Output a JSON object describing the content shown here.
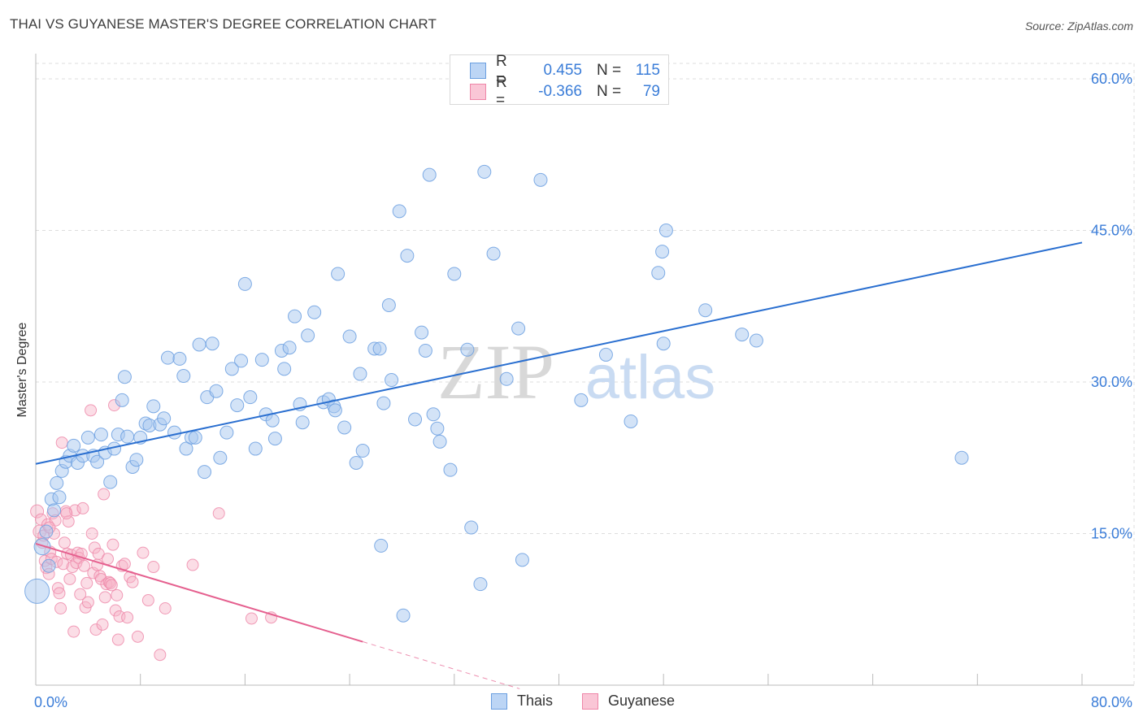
{
  "header": {
    "title": "THAI VS GUYANESE MASTER'S DEGREE CORRELATION CHART",
    "source": "Source: ZipAtlas.com"
  },
  "legend": {
    "series": [
      {
        "name": "Thais",
        "r_label": "R =",
        "r_value": "0.455",
        "n_label": "N =",
        "n_value": "115"
      },
      {
        "name": "Guyanese",
        "r_label": "R =",
        "r_value": "-0.366",
        "n_label": "N =",
        "n_value": "79"
      }
    ]
  },
  "watermark": {
    "zip": "ZIP",
    "atlas": "atlas"
  },
  "colors": {
    "thais_fill": "#a8c8f0",
    "thais_stroke": "#6b9fe0",
    "thais_line": "#2a6fd0",
    "guyanese_fill": "#f7b3c8",
    "guyanese_stroke": "#ee86a8",
    "guyanese_line": "#e5608f",
    "axis_text": "#3b7dd8",
    "grid": "#dddddd"
  },
  "chart_data": {
    "type": "scatter",
    "title": "THAI VS GUYANESE MASTER'S DEGREE CORRELATION CHART",
    "xlabel": "",
    "ylabel": "Master's Degree",
    "xlim": [
      0,
      80
    ],
    "ylim": [
      0,
      60
    ],
    "x_tick_labels": [
      "0.0%",
      "80.0%"
    ],
    "y_ticks": [
      15,
      30,
      45,
      60
    ],
    "y_tick_labels": [
      "15.0%",
      "30.0%",
      "45.0%",
      "60.0%"
    ],
    "grid": true,
    "legend_position": "top-center",
    "series": [
      {
        "name": "Thais",
        "trend": {
          "x0": 0,
          "y0": 21.9,
          "x1": 80,
          "y1": 43.8
        },
        "points": [
          [
            0.1,
            9.3,
            14
          ],
          [
            0.5,
            13.7,
            9
          ],
          [
            0.8,
            15.2,
            7
          ],
          [
            1.0,
            11.8,
            7
          ],
          [
            1.2,
            18.4,
            7
          ],
          [
            1.4,
            17.3,
            7
          ],
          [
            1.6,
            20.0,
            7
          ],
          [
            1.8,
            18.6,
            7
          ],
          [
            2.0,
            21.2,
            7
          ],
          [
            2.3,
            22.1,
            7
          ],
          [
            2.6,
            22.7,
            7
          ],
          [
            2.9,
            23.7,
            7
          ],
          [
            3.2,
            22.0,
            7
          ],
          [
            3.6,
            22.7,
            7
          ],
          [
            4.0,
            24.5,
            7
          ],
          [
            4.4,
            22.7,
            7
          ],
          [
            4.7,
            22.1,
            7
          ],
          [
            5.0,
            24.8,
            7
          ],
          [
            5.3,
            23.0,
            7
          ],
          [
            5.7,
            20.1,
            7
          ],
          [
            6.0,
            23.4,
            7
          ],
          [
            6.3,
            24.8,
            7
          ],
          [
            6.6,
            28.2,
            7
          ],
          [
            6.8,
            30.5,
            7
          ],
          [
            7.0,
            24.6,
            7
          ],
          [
            7.4,
            21.6,
            7
          ],
          [
            7.7,
            22.3,
            7
          ],
          [
            8.0,
            24.5,
            7
          ],
          [
            8.4,
            25.9,
            7
          ],
          [
            8.7,
            25.7,
            7
          ],
          [
            9.0,
            27.6,
            7
          ],
          [
            9.5,
            25.8,
            7
          ],
          [
            9.8,
            26.4,
            7
          ],
          [
            10.1,
            32.4,
            7
          ],
          [
            10.6,
            25.0,
            7
          ],
          [
            11.0,
            32.3,
            7
          ],
          [
            11.3,
            30.6,
            7
          ],
          [
            11.5,
            23.4,
            7
          ],
          [
            11.9,
            24.5,
            7
          ],
          [
            12.2,
            24.5,
            7
          ],
          [
            12.5,
            33.7,
            7
          ],
          [
            12.9,
            21.1,
            7
          ],
          [
            13.1,
            28.5,
            7
          ],
          [
            13.5,
            33.8,
            7
          ],
          [
            13.8,
            29.1,
            7
          ],
          [
            14.1,
            22.5,
            7
          ],
          [
            14.6,
            25.0,
            7
          ],
          [
            15.0,
            31.3,
            7
          ],
          [
            15.4,
            27.7,
            7
          ],
          [
            15.7,
            32.1,
            7
          ],
          [
            16.0,
            39.7,
            7
          ],
          [
            16.4,
            28.5,
            7
          ],
          [
            16.8,
            23.4,
            7
          ],
          [
            17.3,
            32.2,
            7
          ],
          [
            17.6,
            26.8,
            7
          ],
          [
            18.1,
            26.2,
            7
          ],
          [
            18.3,
            24.4,
            7
          ],
          [
            18.8,
            33.1,
            7
          ],
          [
            19.0,
            31.3,
            7
          ],
          [
            19.4,
            33.4,
            7
          ],
          [
            19.8,
            36.5,
            7
          ],
          [
            20.2,
            27.8,
            7
          ],
          [
            20.4,
            26.0,
            7
          ],
          [
            20.8,
            34.6,
            7
          ],
          [
            21.3,
            36.9,
            7
          ],
          [
            22.0,
            28.0,
            7
          ],
          [
            22.4,
            28.3,
            7
          ],
          [
            22.8,
            27.6,
            7
          ],
          [
            23.1,
            40.7,
            7
          ],
          [
            23.6,
            25.5,
            7
          ],
          [
            24.0,
            34.5,
            7
          ],
          [
            24.5,
            22.0,
            7
          ],
          [
            24.8,
            30.8,
            7
          ],
          [
            25.0,
            23.2,
            7
          ],
          [
            25.9,
            33.3,
            7
          ],
          [
            26.3,
            33.3,
            7
          ],
          [
            26.4,
            13.8,
            7
          ],
          [
            27.0,
            37.6,
            7
          ],
          [
            27.2,
            30.2,
            7
          ],
          [
            27.8,
            46.9,
            7
          ],
          [
            28.1,
            6.9,
            7
          ],
          [
            28.4,
            42.5,
            7
          ],
          [
            29.0,
            26.3,
            7
          ],
          [
            29.5,
            34.9,
            7
          ],
          [
            29.8,
            33.1,
            7
          ],
          [
            30.1,
            50.5,
            7
          ],
          [
            30.4,
            26.8,
            7
          ],
          [
            30.7,
            25.4,
            7
          ],
          [
            30.9,
            24.1,
            7
          ],
          [
            31.7,
            21.3,
            7
          ],
          [
            32.0,
            40.7,
            7
          ],
          [
            33.0,
            33.2,
            7
          ],
          [
            33.3,
            15.6,
            7
          ],
          [
            34.0,
            10.0,
            7
          ],
          [
            34.3,
            50.8,
            7
          ],
          [
            35.0,
            42.7,
            7
          ],
          [
            36.0,
            30.3,
            7
          ],
          [
            36.9,
            35.3,
            7
          ],
          [
            37.2,
            12.4,
            7
          ],
          [
            38.6,
            50.0,
            7
          ],
          [
            41.7,
            28.2,
            7
          ],
          [
            43.6,
            32.7,
            7
          ],
          [
            45.5,
            26.1,
            7
          ],
          [
            47.6,
            40.8,
            7
          ],
          [
            47.9,
            42.9,
            7
          ],
          [
            48.0,
            33.8,
            7
          ],
          [
            48.2,
            45.0,
            7
          ],
          [
            51.2,
            37.1,
            7
          ],
          [
            54.0,
            34.7,
            7
          ],
          [
            55.1,
            34.1,
            7
          ],
          [
            70.8,
            22.5,
            7
          ],
          [
            26.6,
            27.9,
            7
          ],
          [
            22.9,
            27.2,
            7
          ]
        ]
      },
      {
        "name": "Guyanese",
        "trend": {
          "x0": 0,
          "y0": 14.0,
          "x1": 25,
          "y1": 4.3,
          "dash_x1": 37
        },
        "points": [
          [
            0.1,
            17.2,
            8
          ],
          [
            0.3,
            15.2,
            8
          ],
          [
            0.4,
            16.4,
            7
          ],
          [
            0.5,
            14.1,
            7
          ],
          [
            0.7,
            12.3,
            7
          ],
          [
            0.8,
            11.6,
            7
          ],
          [
            0.9,
            15.9,
            7
          ],
          [
            1.0,
            11.0,
            7
          ],
          [
            1.1,
            13.2,
            7
          ],
          [
            1.2,
            12.5,
            7
          ],
          [
            1.3,
            17.0,
            7
          ],
          [
            1.4,
            15.0,
            7
          ],
          [
            1.5,
            16.3,
            7
          ],
          [
            1.6,
            12.2,
            7
          ],
          [
            1.7,
            9.6,
            7
          ],
          [
            1.8,
            9.1,
            7
          ],
          [
            1.9,
            7.6,
            7
          ],
          [
            2.0,
            24.0,
            7
          ],
          [
            2.1,
            12.0,
            7
          ],
          [
            2.2,
            14.1,
            7
          ],
          [
            2.3,
            17.2,
            7
          ],
          [
            2.4,
            13.0,
            7
          ],
          [
            2.5,
            16.2,
            7
          ],
          [
            2.6,
            10.5,
            7
          ],
          [
            2.7,
            12.9,
            7
          ],
          [
            2.8,
            11.7,
            7
          ],
          [
            2.9,
            5.3,
            7
          ],
          [
            3.0,
            17.3,
            7
          ],
          [
            3.1,
            12.1,
            7
          ],
          [
            3.2,
            13.1,
            7
          ],
          [
            3.3,
            12.6,
            7
          ],
          [
            3.4,
            9.0,
            7
          ],
          [
            3.5,
            13.0,
            7
          ],
          [
            3.6,
            17.5,
            7
          ],
          [
            3.7,
            11.8,
            7
          ],
          [
            3.8,
            7.7,
            7
          ],
          [
            3.9,
            10.1,
            7
          ],
          [
            4.0,
            8.2,
            7
          ],
          [
            4.2,
            27.2,
            7
          ],
          [
            4.3,
            15.0,
            7
          ],
          [
            4.4,
            11.1,
            7
          ],
          [
            4.5,
            13.6,
            7
          ],
          [
            4.6,
            5.5,
            7
          ],
          [
            4.7,
            11.9,
            7
          ],
          [
            4.8,
            13.0,
            7
          ],
          [
            4.9,
            10.8,
            7
          ],
          [
            5.0,
            10.5,
            7
          ],
          [
            5.1,
            6.0,
            7
          ],
          [
            5.2,
            18.9,
            7
          ],
          [
            5.3,
            8.7,
            7
          ],
          [
            5.4,
            10.0,
            7
          ],
          [
            5.5,
            12.5,
            7
          ],
          [
            5.6,
            10.2,
            7
          ],
          [
            5.7,
            10.1,
            7
          ],
          [
            5.8,
            9.9,
            7
          ],
          [
            5.9,
            13.9,
            7
          ],
          [
            6.0,
            27.7,
            7
          ],
          [
            6.1,
            7.4,
            7
          ],
          [
            6.2,
            8.9,
            7
          ],
          [
            6.3,
            4.5,
            7
          ],
          [
            6.4,
            6.8,
            7
          ],
          [
            6.6,
            11.8,
            7
          ],
          [
            6.8,
            12.0,
            7
          ],
          [
            7.0,
            6.7,
            7
          ],
          [
            7.2,
            10.7,
            7
          ],
          [
            7.4,
            10.2,
            7
          ],
          [
            7.8,
            4.8,
            7
          ],
          [
            8.2,
            13.1,
            7
          ],
          [
            8.6,
            8.4,
            7
          ],
          [
            9.0,
            11.7,
            7
          ],
          [
            9.5,
            3.0,
            7
          ],
          [
            9.9,
            7.6,
            7
          ],
          [
            12.0,
            11.9,
            7
          ],
          [
            14.0,
            17.0,
            7
          ],
          [
            16.5,
            6.6,
            7
          ],
          [
            18.0,
            6.7,
            7
          ],
          [
            0.6,
            14.8,
            7
          ],
          [
            1.05,
            15.6,
            7
          ],
          [
            2.35,
            17.0,
            7
          ]
        ]
      }
    ]
  }
}
